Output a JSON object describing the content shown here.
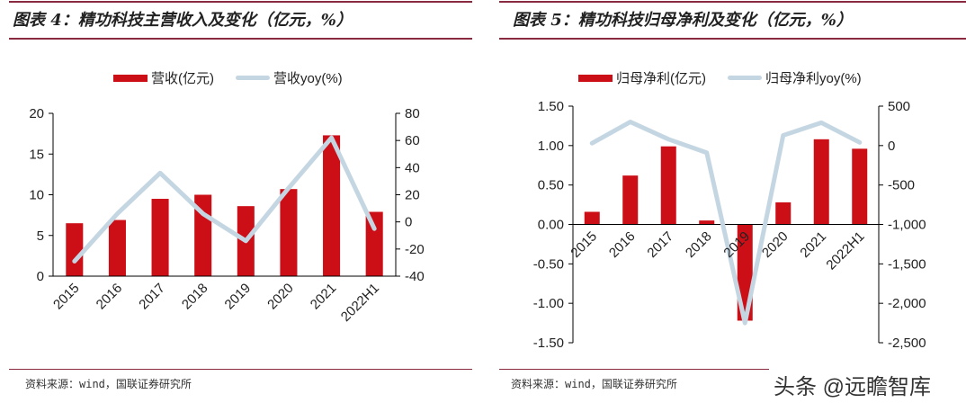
{
  "colors": {
    "bar": "#cc0e17",
    "line": "#c5d6e3",
    "rule": "#8a2a40"
  },
  "chart_data": [
    {
      "type": "bar+line",
      "title": "图表 4：精功科技主营收入及变化（亿元，%）",
      "categories": [
        "2015",
        "2016",
        "2017",
        "2018",
        "2019",
        "2020",
        "2021",
        "2022H1"
      ],
      "series": [
        {
          "name": "营收(亿元)",
          "type": "bar",
          "axis": "left",
          "values": [
            6.5,
            6.9,
            9.5,
            10.0,
            8.6,
            10.7,
            17.3,
            7.9
          ]
        },
        {
          "name": "营收yoy(%)",
          "type": "line",
          "axis": "right",
          "values": [
            -29,
            6,
            36,
            6,
            -14,
            25,
            62,
            -5
          ]
        }
      ],
      "left_axis": {
        "ylim": [
          0,
          20
        ],
        "ticks": [
          "0",
          "5",
          "10",
          "15",
          "20"
        ]
      },
      "right_axis": {
        "ylim": [
          -40,
          80
        ],
        "ticks": [
          "-40",
          "-20",
          "0",
          "20",
          "40",
          "60",
          "80"
        ]
      },
      "legend": "top",
      "grid": false,
      "source": "资料来源：wind，国联证券研究所"
    },
    {
      "type": "bar+line",
      "title": "图表 5：精功科技归母净利及变化（亿元，%）",
      "categories": [
        "2015",
        "2016",
        "2017",
        "2018",
        "2019",
        "2020",
        "2021",
        "2022H1"
      ],
      "series": [
        {
          "name": "归母净利(亿元)",
          "type": "bar",
          "axis": "left",
          "values": [
            0.16,
            0.62,
            0.99,
            0.05,
            -1.22,
            0.28,
            1.08,
            0.96
          ]
        },
        {
          "name": "归母净利yoy(%)",
          "type": "line",
          "axis": "right",
          "values": [
            30,
            300,
            80,
            -90,
            -2250,
            130,
            290,
            40
          ]
        }
      ],
      "left_axis": {
        "ylim": [
          -1.5,
          1.5
        ],
        "ticks": [
          "-1.50",
          "-1.00",
          "-0.50",
          "0.00",
          "0.50",
          "1.00",
          "1.50"
        ]
      },
      "right_axis": {
        "ylim": [
          -2500,
          500
        ],
        "ticks": [
          "-2,500",
          "-2,000",
          "-1,500",
          "-1,000",
          "-500",
          "0",
          "500"
        ]
      },
      "legend": "top",
      "grid": false,
      "source": "资料来源：wind，国联证券研究所"
    }
  ],
  "watermark": "头条 @远瞻智库"
}
